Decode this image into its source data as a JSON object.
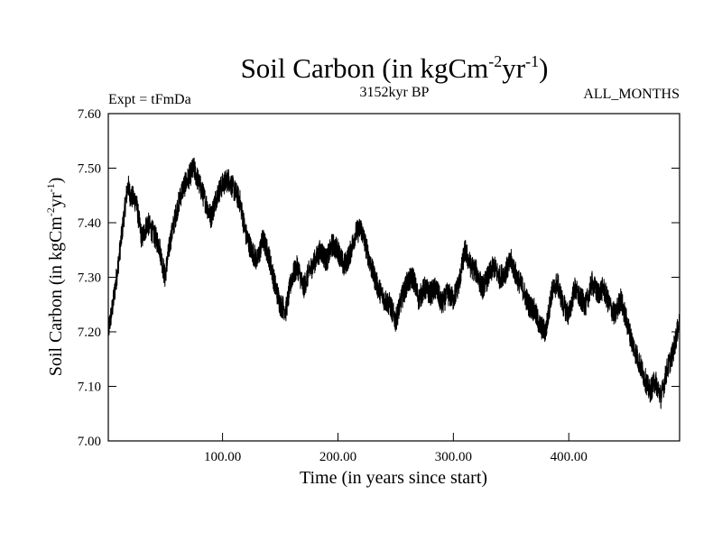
{
  "chart_data": {
    "type": "line",
    "title_main": "Soil Carbon (in kgCm",
    "title_unit_exp1": "-2",
    "title_unit_mid": "yr",
    "title_unit_exp2": "-1",
    "title_close": ")",
    "subtitle_left": "Expt = tFmDa",
    "subtitle_center": "3152kyr BP",
    "subtitle_right": "ALL_MONTHS",
    "xlabel": "Time (in years since start)",
    "ylabel_main": "Soil Carbon (in kgCm",
    "ylabel_exp1": "-2",
    "ylabel_mid": "yr",
    "ylabel_exp2": "-1",
    "ylabel_close": ")",
    "xlim": [
      1,
      496
    ],
    "ylim": [
      7.0,
      7.6
    ],
    "x_ticks": [
      100,
      200,
      300,
      400
    ],
    "x_tick_labels": [
      "100.00",
      "200.00",
      "300.00",
      "400.00"
    ],
    "y_ticks": [
      7.0,
      7.1,
      7.2,
      7.3,
      7.4,
      7.5,
      7.6
    ],
    "y_tick_labels": [
      "7.00",
      "7.10",
      "7.20",
      "7.30",
      "7.40",
      "7.50",
      "7.60"
    ],
    "series": [
      {
        "color": "#000000",
        "x": [
          1,
          5,
          10,
          15,
          18,
          20,
          25,
          30,
          35,
          40,
          45,
          50,
          55,
          60,
          65,
          70,
          75,
          80,
          85,
          90,
          95,
          100,
          105,
          110,
          115,
          120,
          125,
          130,
          135,
          140,
          145,
          150,
          155,
          160,
          165,
          170,
          175,
          180,
          185,
          190,
          195,
          200,
          205,
          210,
          215,
          220,
          225,
          230,
          235,
          240,
          245,
          250,
          255,
          260,
          265,
          270,
          275,
          280,
          285,
          290,
          295,
          300,
          305,
          310,
          315,
          320,
          325,
          330,
          335,
          340,
          345,
          350,
          355,
          360,
          365,
          370,
          375,
          380,
          385,
          390,
          395,
          400,
          405,
          410,
          415,
          420,
          425,
          430,
          435,
          440,
          445,
          450,
          455,
          460,
          465,
          470,
          475,
          480,
          485,
          490,
          496
        ],
        "y": [
          7.2,
          7.25,
          7.33,
          7.42,
          7.47,
          7.45,
          7.44,
          7.37,
          7.4,
          7.38,
          7.36,
          7.3,
          7.37,
          7.42,
          7.46,
          7.48,
          7.5,
          7.47,
          7.44,
          7.41,
          7.45,
          7.47,
          7.48,
          7.46,
          7.44,
          7.38,
          7.35,
          7.33,
          7.37,
          7.34,
          7.29,
          7.25,
          7.24,
          7.3,
          7.32,
          7.28,
          7.31,
          7.33,
          7.35,
          7.33,
          7.36,
          7.35,
          7.32,
          7.34,
          7.38,
          7.39,
          7.35,
          7.31,
          7.28,
          7.26,
          7.25,
          7.22,
          7.26,
          7.29,
          7.3,
          7.26,
          7.28,
          7.27,
          7.28,
          7.25,
          7.27,
          7.26,
          7.29,
          7.35,
          7.32,
          7.31,
          7.28,
          7.3,
          7.32,
          7.3,
          7.31,
          7.33,
          7.3,
          7.28,
          7.25,
          7.24,
          7.21,
          7.2,
          7.27,
          7.29,
          7.25,
          7.23,
          7.28,
          7.26,
          7.25,
          7.29,
          7.27,
          7.28,
          7.25,
          7.23,
          7.26,
          7.22,
          7.18,
          7.15,
          7.12,
          7.09,
          7.11,
          7.08,
          7.13,
          7.16,
          7.22
        ],
        "noise_amplitude": 0.022
      }
    ]
  }
}
